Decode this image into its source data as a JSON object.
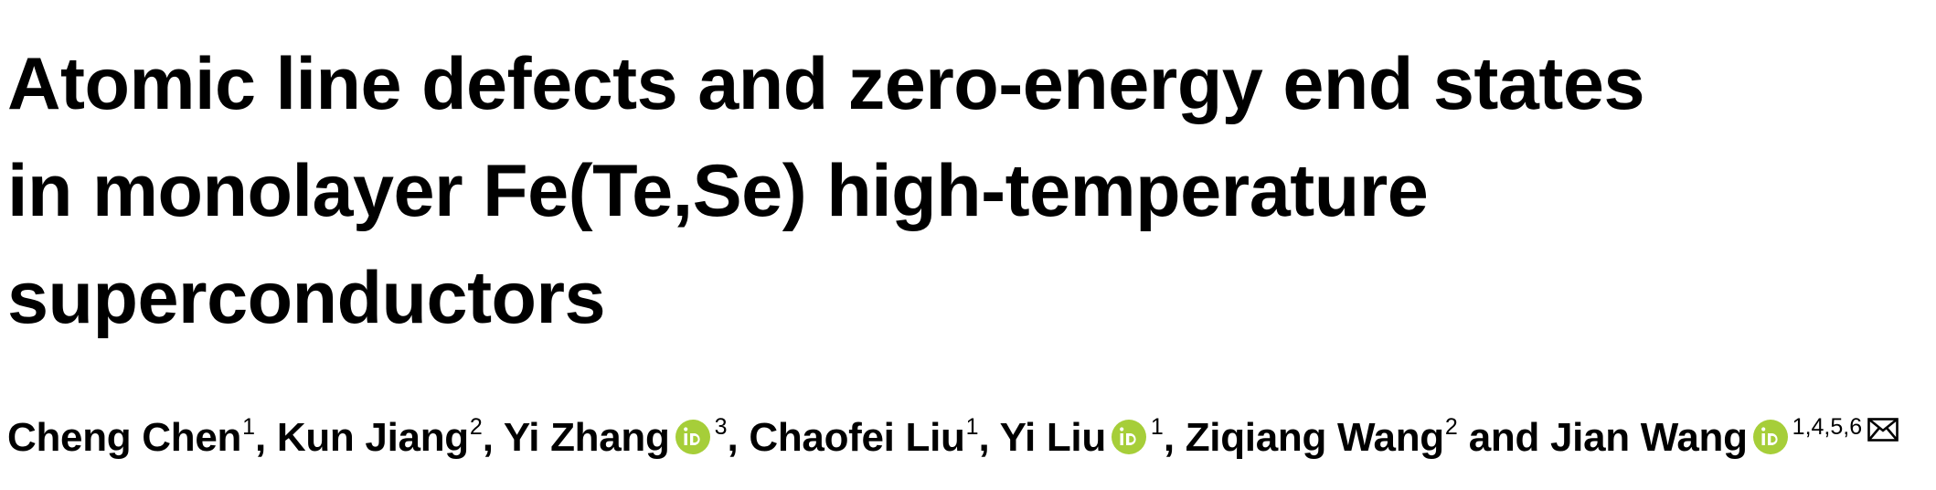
{
  "title": {
    "lines": [
      "Atomic line defects and zero-energy end states",
      "in monolayer Fe(Te,Se) high-temperature",
      "superconductors"
    ]
  },
  "authors": [
    {
      "name": "Cheng Chen",
      "aff": "1",
      "sep": ", "
    },
    {
      "name": "Kun Jiang",
      "aff": "2",
      "sep": ", "
    },
    {
      "name": "Yi Zhang",
      "aff": "3",
      "sep": ", ",
      "orcid": true
    },
    {
      "name": "Chaofei Liu",
      "aff": "1",
      "sep": ", "
    },
    {
      "name": "Yi Liu",
      "aff": "1",
      "sep": ", ",
      "orcid": true
    },
    {
      "name": "Ziqiang Wang",
      "aff": "2",
      "sep": " and "
    },
    {
      "name": "Jian Wang",
      "aff": "1,4,5,6",
      "sep": "",
      "orcid": true,
      "corresponding": true
    }
  ],
  "icons": {
    "orcid": "orcid-icon",
    "orcid_color": "#a6ce39",
    "mail": "envelope-icon"
  }
}
